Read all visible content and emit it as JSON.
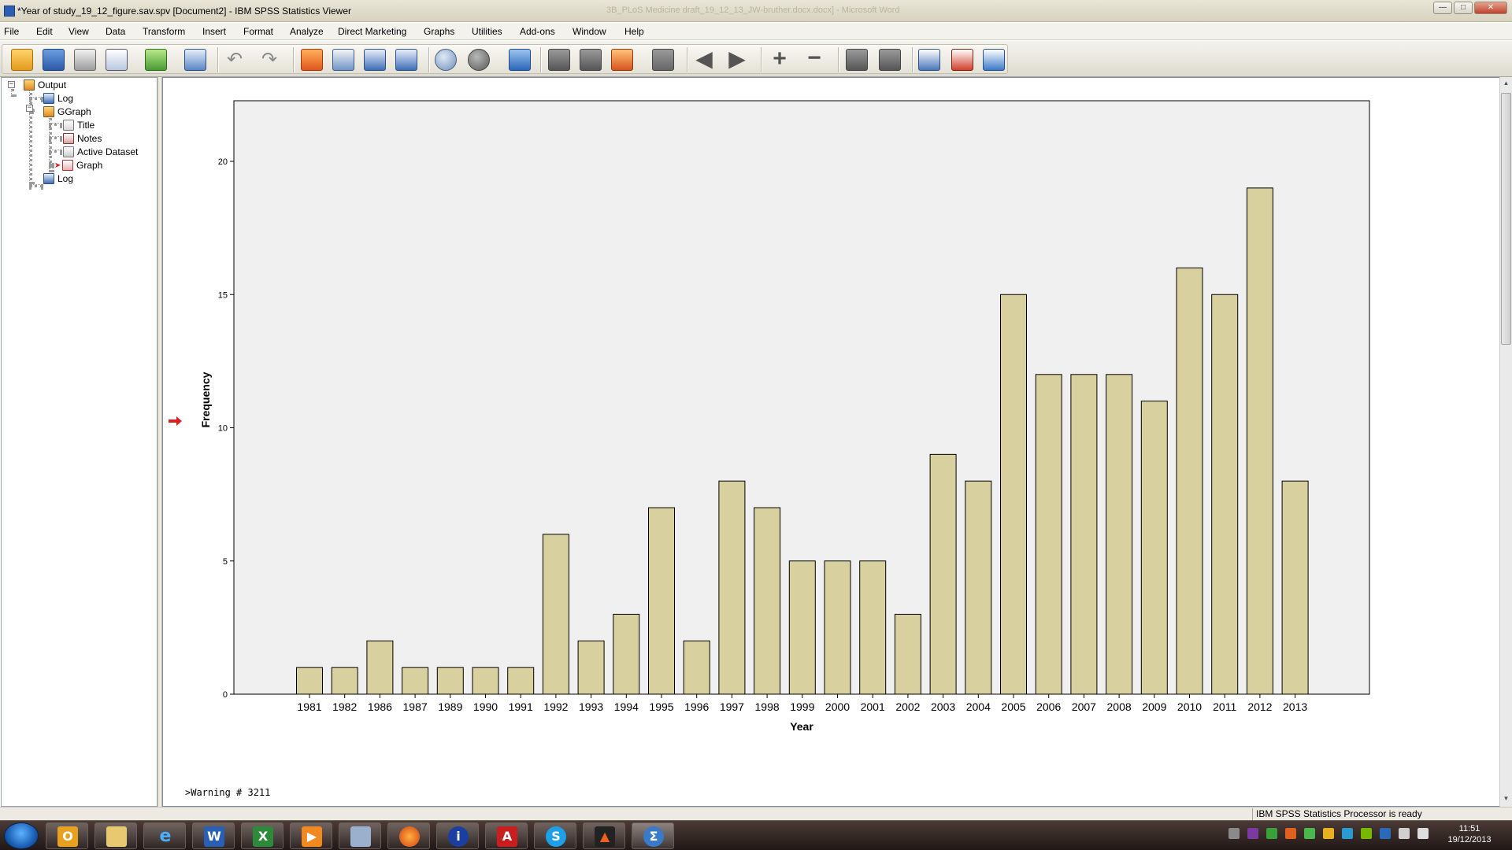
{
  "window": {
    "title": "*Year of study_19_12_figure.sav.spv [Document2] - IBM SPSS Statistics Viewer",
    "background_title": "3B_PLoS Medicine draft_19_12_13_JW-bruther.docx.docx] - Microsoft Word"
  },
  "menu": {
    "items": [
      "File",
      "Edit",
      "View",
      "Data",
      "Transform",
      "Insert",
      "Format",
      "Analyze",
      "Direct Marketing",
      "Graphs",
      "Utilities",
      "Add-ons",
      "Window",
      "Help"
    ]
  },
  "toolbar": {
    "icons": [
      "open-icon",
      "save-icon",
      "print-icon",
      "print-preview-icon",
      "export-icon",
      "recall-dialog-icon",
      "undo-icon",
      "redo-icon",
      "goto-case-icon",
      "goto-variable-icon",
      "insert-cases-icon",
      "variables-icon",
      "value-labels-icon",
      "use-sets-icon",
      "select-cases-icon",
      "split-file-icon",
      "weight-cases-icon",
      "designate-window-icon",
      "edit-output-icon",
      "pivot-icon",
      "back-arrow-icon",
      "forward-arrow-icon",
      "expand-plus-icon",
      "collapse-minus-icon",
      "show-icon",
      "hide-icon",
      "insert-heading-icon",
      "insert-title-icon",
      "insert-text-icon"
    ]
  },
  "outline": {
    "nodes": [
      {
        "label": "Output",
        "icon": "output-book-icon"
      },
      {
        "label": "Log",
        "icon": "log-icon"
      },
      {
        "label": "GGraph",
        "icon": "ggraph-book-icon"
      },
      {
        "label": "Title",
        "icon": "title-icon"
      },
      {
        "label": "Notes",
        "icon": "notes-icon"
      },
      {
        "label": "Active Dataset",
        "icon": "active-dataset-icon"
      },
      {
        "label": "Graph",
        "icon": "graph-icon"
      },
      {
        "label": "Log",
        "icon": "log-icon"
      }
    ]
  },
  "colors": {
    "bar_fill": "#d8d09e",
    "plot_background": "#f0f0f0",
    "selection_arrow": "#e02020"
  },
  "chart_data": {
    "type": "bar",
    "title": "",
    "xlabel": "Year",
    "ylabel": "Frequency",
    "ylim": [
      0,
      22
    ],
    "yticks": [
      0,
      5,
      10,
      15,
      20
    ],
    "grid": false,
    "categories": [
      "1981",
      "1982",
      "1986",
      "1987",
      "1989",
      "1990",
      "1991",
      "1992",
      "1993",
      "1994",
      "1995",
      "1996",
      "1997",
      "1998",
      "1999",
      "2000",
      "2001",
      "2002",
      "2003",
      "2004",
      "2005",
      "2006",
      "2007",
      "2008",
      "2009",
      "2010",
      "2011",
      "2012",
      "2013"
    ],
    "values": [
      1,
      1,
      2,
      1,
      1,
      1,
      1,
      6,
      2,
      3,
      7,
      2,
      8,
      7,
      5,
      5,
      5,
      3,
      9,
      8,
      15,
      12,
      12,
      12,
      11,
      16,
      15,
      19,
      8
    ]
  },
  "content": {
    "warning_text": ">Warning # 3211"
  },
  "status": {
    "text": "IBM SPSS Statistics Processor is ready"
  },
  "taskbar": {
    "apps": [
      "outlook-icon",
      "explorer-folder-icon",
      "internet-explorer-icon",
      "word-icon",
      "excel-icon",
      "media-player-icon",
      "calculator-icon",
      "firefox-icon",
      "info-icon",
      "acrobat-icon",
      "skype-icon",
      "stata-icon",
      "spss-icon"
    ],
    "tray_icons": [
      "network-icon",
      "onenote-icon",
      "sync-icon",
      "shield-icon",
      "green-leaf-icon",
      "yellow-app-icon",
      "chat-icon",
      "nvidia-icon",
      "security-icon",
      "monitor-icon",
      "volume-icon"
    ]
  },
  "clock": {
    "time": "11:51",
    "date": "19/12/2013"
  }
}
